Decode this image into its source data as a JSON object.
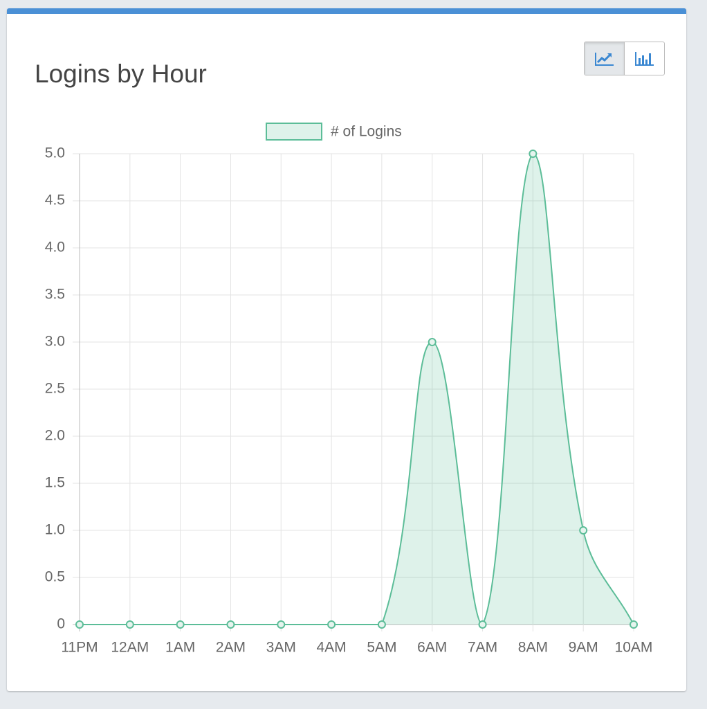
{
  "chart_data": {
    "type": "line",
    "title": "Logins by Hour",
    "categories": [
      "11PM",
      "12AM",
      "1AM",
      "2AM",
      "3AM",
      "4AM",
      "5AM",
      "6AM",
      "7AM",
      "8AM",
      "9AM",
      "10AM"
    ],
    "series": [
      {
        "name": "# of Logins",
        "color": "#5cbd98",
        "values": [
          0,
          0,
          0,
          0,
          0,
          0,
          0,
          3,
          0,
          5,
          1,
          0
        ]
      }
    ],
    "ylim": [
      0,
      5
    ],
    "yticks": [
      0,
      0.5,
      {
        "value": 1,
        "label": "1.0"
      },
      1.5,
      {
        "value": 2,
        "label": "2.0"
      },
      2.5,
      {
        "value": 3,
        "label": "3.0"
      },
      3.5,
      {
        "value": 4,
        "label": "4.0"
      },
      4.5,
      {
        "value": 5,
        "label": "5.0"
      }
    ],
    "grid": true,
    "legend": "top",
    "fill": true,
    "smooth": true
  }
}
